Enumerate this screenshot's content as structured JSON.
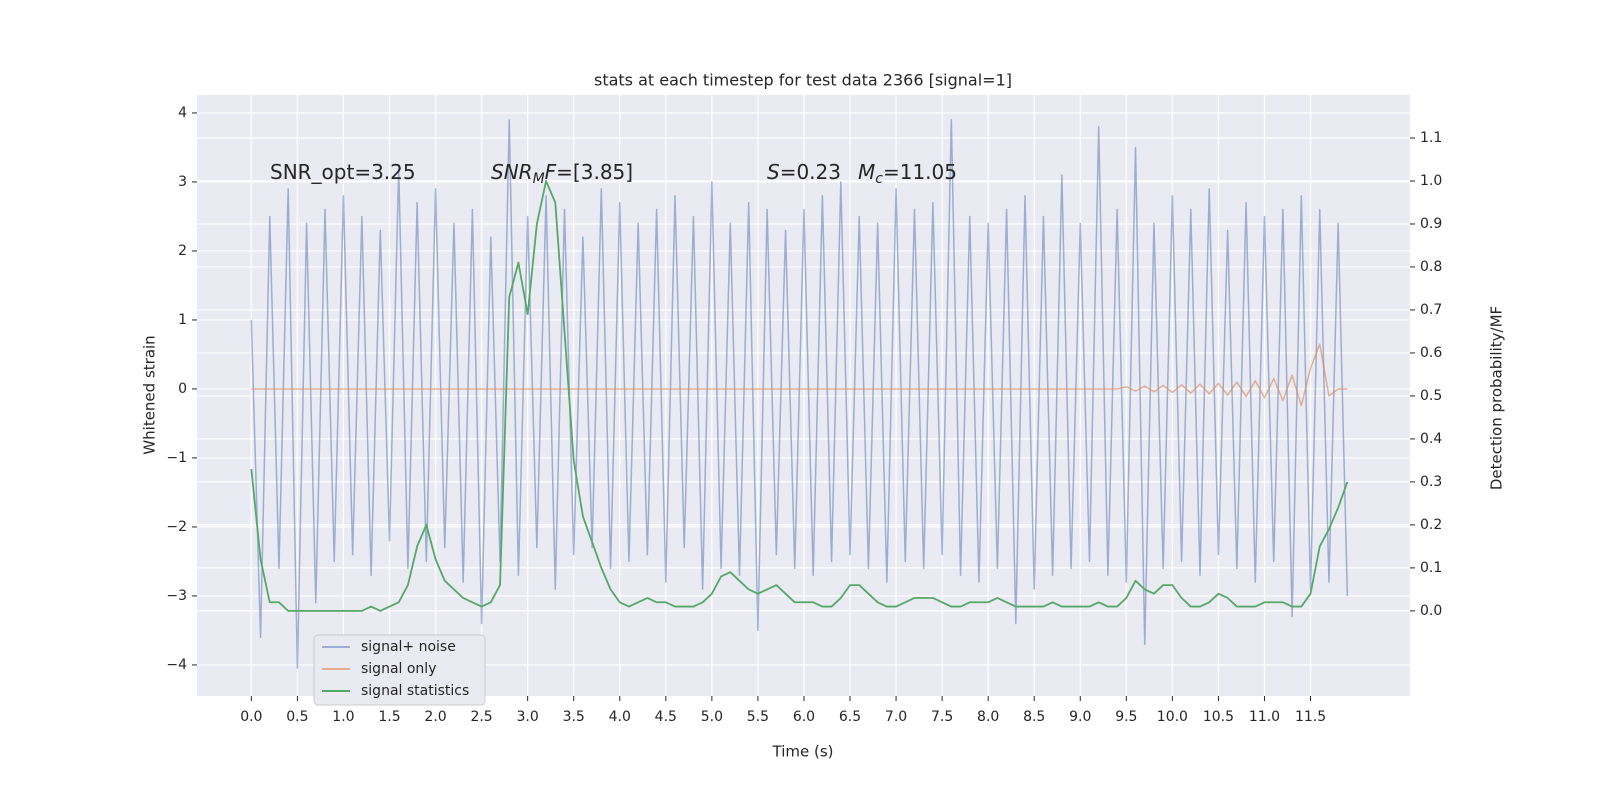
{
  "chart_data": {
    "type": "line",
    "title": "stats at each timestep for test data 2366 [signal=1]",
    "xlabel": "Time (s)",
    "ylabel": "Whitened strain",
    "y2label": "Detection probability/MF",
    "grid": true,
    "legend": "lower left",
    "xlim": [
      -0.59,
      12.58
    ],
    "ylim": [
      -4.45,
      4.26
    ],
    "y2lim": [
      -0.198,
      1.2
    ],
    "xticks": [
      {
        "value": 0,
        "label": "0.0"
      },
      0.5,
      {
        "value": 1,
        "label": "1.0"
      },
      1.5,
      {
        "value": 2,
        "label": "2.0"
      },
      2.5,
      {
        "value": 3,
        "label": "3.0"
      },
      3.5,
      {
        "value": 4,
        "label": "4.0"
      },
      4.5,
      {
        "value": 5,
        "label": "5.0"
      },
      5.5,
      {
        "value": 6,
        "label": "6.0"
      },
      6.5,
      {
        "value": 7,
        "label": "7.0"
      },
      7.5,
      {
        "value": 8,
        "label": "8.0"
      },
      8.5,
      {
        "value": 9,
        "label": "9.0"
      },
      9.5,
      {
        "value": 10,
        "label": "10.0"
      },
      10.5,
      {
        "value": 11,
        "label": "11.0"
      },
      11.5
    ],
    "yticks": [
      {
        "value": -4,
        "label": "−4"
      },
      {
        "value": -3,
        "label": "−3"
      },
      {
        "value": -2,
        "label": "−2"
      },
      {
        "value": -1,
        "label": "−1"
      },
      0,
      1,
      2,
      3,
      4
    ],
    "y2ticks": [
      {
        "value": 0,
        "label": "0.0"
      },
      0.1,
      0.2,
      0.3,
      0.4,
      0.5,
      0.6,
      0.7,
      0.8,
      0.9,
      {
        "value": 1,
        "label": "1.0"
      },
      1.1
    ],
    "annotations": [
      [
        {
          "text": "SNR_opt=3.25"
        }
      ],
      [
        {
          "text": "SNR",
          "italic": true
        },
        {
          "text": "M",
          "italic": true,
          "sub": true
        },
        {
          "text": "F",
          "italic": true
        },
        {
          "text": "=[3.85]"
        }
      ],
      [
        {
          "text": "S",
          "italic": true
        },
        {
          "text": "=0.23"
        }
      ],
      [
        {
          "text": "M",
          "italic": true
        },
        {
          "text": "c",
          "italic": true,
          "sub": true
        },
        {
          "text": "=11.05"
        }
      ]
    ],
    "x": [
      0.0,
      0.1,
      0.2,
      0.3,
      0.4,
      0.5,
      0.6,
      0.7,
      0.8,
      0.9,
      1.0,
      1.1,
      1.2,
      1.3,
      1.4,
      1.5,
      1.6,
      1.7,
      1.8,
      1.9,
      2.0,
      2.1,
      2.2,
      2.3,
      2.4,
      2.5,
      2.6,
      2.7,
      2.8,
      2.9,
      3.0,
      3.1,
      3.2,
      3.3,
      3.4,
      3.5,
      3.6,
      3.7,
      3.8,
      3.9,
      4.0,
      4.1,
      4.2,
      4.3,
      4.4,
      4.5,
      4.6,
      4.7,
      4.8,
      4.9,
      5.0,
      5.1,
      5.2,
      5.3,
      5.4,
      5.5,
      5.6,
      5.7,
      5.8,
      5.9,
      6.0,
      6.1,
      6.2,
      6.3,
      6.4,
      6.5,
      6.6,
      6.7,
      6.8,
      6.9,
      7.0,
      7.1,
      7.2,
      7.3,
      7.4,
      7.5,
      7.6,
      7.7,
      7.8,
      7.9,
      8.0,
      8.1,
      8.2,
      8.3,
      8.4,
      8.5,
      8.6,
      8.7,
      8.8,
      8.9,
      9.0,
      9.1,
      9.2,
      9.3,
      9.4,
      9.5,
      9.6,
      9.7,
      9.8,
      9.9,
      10.0,
      10.1,
      10.2,
      10.3,
      10.4,
      10.5,
      10.6,
      10.7,
      10.8,
      10.9,
      11.0,
      11.1,
      11.2,
      11.3,
      11.4,
      11.5,
      11.6,
      11.7,
      11.8,
      11.9
    ],
    "series": [
      {
        "name": "signal+ noise",
        "color": "#4c72b0",
        "alpha": 0.5,
        "values": [
          1.0,
          -3.6,
          2.5,
          -2.6,
          2.9,
          -4.05,
          2.4,
          -3.1,
          2.6,
          -2.5,
          2.8,
          -2.4,
          2.5,
          -2.7,
          2.3,
          -2.2,
          3.2,
          -2.6,
          2.7,
          -2.5,
          2.9,
          -2.3,
          2.4,
          -2.8,
          2.6,
          -3.4,
          2.2,
          -2.5,
          3.9,
          -2.7,
          2.5,
          -2.3,
          2.8,
          -2.9,
          2.6,
          -2.4,
          2.2,
          -2.3,
          2.9,
          -2.6,
          2.7,
          -2.5,
          2.4,
          -2.4,
          2.6,
          -2.8,
          2.8,
          -2.3,
          2.5,
          -2.9,
          3.0,
          -2.6,
          2.4,
          -2.7,
          2.7,
          -3.5,
          2.6,
          -2.4,
          2.3,
          -2.6,
          2.6,
          -2.7,
          2.8,
          -2.5,
          3.0,
          -2.4,
          2.5,
          -2.6,
          2.4,
          -2.8,
          2.9,
          -2.5,
          2.6,
          -2.6,
          2.7,
          -2.4,
          3.9,
          -2.7,
          2.5,
          -2.8,
          2.4,
          -2.6,
          2.6,
          -3.4,
          2.8,
          -2.9,
          2.5,
          -2.7,
          3.1,
          -2.6,
          2.4,
          -2.5,
          3.8,
          -2.7,
          2.6,
          -2.8,
          3.5,
          -3.7,
          2.4,
          -2.6,
          2.8,
          -2.5,
          2.6,
          -2.7,
          2.9,
          -2.4,
          2.3,
          -2.6,
          2.7,
          -2.8,
          2.5,
          -2.5,
          2.6,
          -3.3,
          2.8,
          -2.9,
          2.6,
          -2.8,
          2.4,
          -3.0
        ]
      },
      {
        "name": "signal only",
        "color": "#dd8452",
        "alpha": 0.6,
        "values": [
          0,
          0,
          0,
          0,
          0,
          0,
          0,
          0,
          0,
          0,
          0,
          0,
          0,
          0,
          0,
          0,
          0,
          0,
          0,
          0,
          0,
          0,
          0,
          0,
          0,
          0,
          0,
          0,
          0,
          0,
          0,
          0,
          0,
          0,
          0,
          0,
          0,
          0,
          0,
          0,
          0,
          0,
          0,
          0,
          0,
          0,
          0,
          0,
          0,
          0,
          0,
          0,
          0,
          0,
          0,
          0,
          0,
          0,
          0,
          0,
          0,
          0,
          0,
          0,
          0,
          0,
          0,
          0,
          0,
          0,
          0,
          0,
          0,
          0,
          0,
          0,
          0,
          0,
          0,
          0,
          0,
          0,
          0,
          0,
          0,
          0,
          0,
          0,
          0,
          0,
          0,
          0,
          0,
          0,
          0,
          0.03,
          -0.03,
          0.04,
          -0.04,
          0.05,
          -0.05,
          0.06,
          -0.06,
          0.07,
          -0.07,
          0.08,
          -0.09,
          0.1,
          -0.11,
          0.12,
          -0.13,
          0.15,
          -0.17,
          0.2,
          -0.24,
          0.3,
          0.65,
          -0.1,
          0,
          0
        ]
      },
      {
        "name": "signal statistics",
        "color": "#55a868",
        "alpha": 1,
        "axis": "y2",
        "values": [
          0.33,
          0.12,
          0.02,
          0.02,
          0.0,
          0.0,
          0.0,
          0.0,
          0.0,
          0.0,
          0.0,
          0.0,
          0.0,
          0.01,
          0.0,
          0.01,
          0.02,
          0.06,
          0.15,
          0.2,
          0.12,
          0.07,
          0.05,
          0.03,
          0.02,
          0.01,
          0.02,
          0.06,
          0.73,
          0.81,
          0.69,
          0.9,
          1.0,
          0.95,
          0.65,
          0.35,
          0.22,
          0.16,
          0.1,
          0.05,
          0.02,
          0.01,
          0.02,
          0.03,
          0.02,
          0.02,
          0.01,
          0.01,
          0.01,
          0.02,
          0.04,
          0.08,
          0.09,
          0.07,
          0.05,
          0.04,
          0.05,
          0.06,
          0.04,
          0.02,
          0.02,
          0.02,
          0.01,
          0.01,
          0.03,
          0.06,
          0.06,
          0.04,
          0.02,
          0.01,
          0.01,
          0.02,
          0.03,
          0.03,
          0.03,
          0.02,
          0.01,
          0.01,
          0.02,
          0.02,
          0.02,
          0.03,
          0.02,
          0.01,
          0.01,
          0.01,
          0.01,
          0.02,
          0.01,
          0.01,
          0.01,
          0.01,
          0.02,
          0.01,
          0.01,
          0.03,
          0.07,
          0.05,
          0.04,
          0.06,
          0.06,
          0.03,
          0.01,
          0.01,
          0.02,
          0.04,
          0.03,
          0.01,
          0.01,
          0.01,
          0.02,
          0.02,
          0.02,
          0.01,
          0.01,
          0.04,
          0.15,
          0.19,
          0.24,
          0.3
        ]
      }
    ]
  }
}
